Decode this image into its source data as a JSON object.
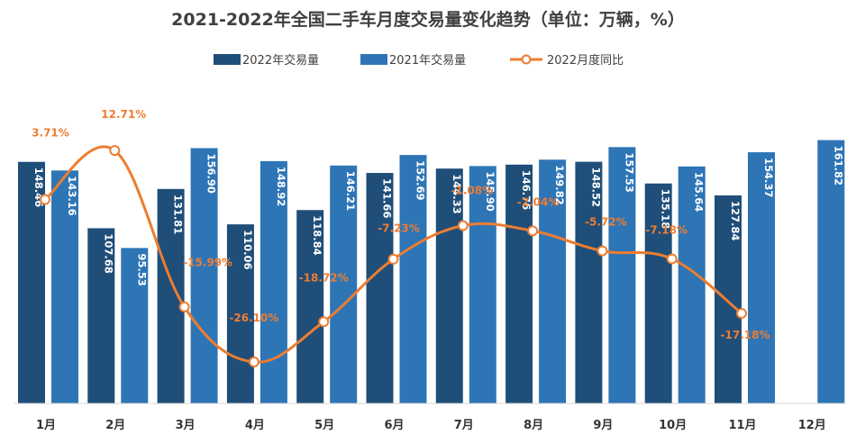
{
  "chart_data": {
    "type": "bar",
    "title": "2021-2022年全国二手车月度交易量变化趋势（单位：万辆，%）",
    "categories": [
      "1月",
      "2月",
      "3月",
      "4月",
      "5月",
      "6月",
      "7月",
      "8月",
      "9月",
      "10月",
      "11月",
      "12月"
    ],
    "series": [
      {
        "name": "2022年交易量",
        "type": "bar",
        "color": "#1F4E79",
        "values": [
          148.46,
          107.68,
          131.81,
          110.06,
          118.84,
          141.66,
          144.33,
          146.76,
          148.52,
          135.18,
          127.84,
          null
        ],
        "labels": [
          "148.46",
          "107.68",
          "131.81",
          "110.06",
          "118.84",
          "141.66",
          "144.33",
          "146.76",
          "148.52",
          "135.18",
          "127.84",
          ""
        ]
      },
      {
        "name": "2021年交易量",
        "type": "bar",
        "color": "#2E75B6",
        "values": [
          143.16,
          95.53,
          156.9,
          148.92,
          146.21,
          152.69,
          145.9,
          149.82,
          157.53,
          145.64,
          154.37,
          161.82
        ],
        "labels": [
          "143.16",
          "95.53",
          "156.90",
          "148.92",
          "146.21",
          "152.69",
          "145.90",
          "149.82",
          "157.53",
          "145.64",
          "154.37",
          "161.82"
        ]
      },
      {
        "name": "2022月度同比",
        "type": "line",
        "color": "#ED7D31",
        "values": [
          3.71,
          12.71,
          -15.99,
          -26.1,
          -18.72,
          -7.23,
          -1.08,
          -2.04,
          -5.72,
          -7.18,
          -17.18,
          null
        ],
        "labels": [
          "3.71%",
          "12.71%",
          "-15.99%",
          "-26.10%",
          "-18.72%",
          "-7.23%",
          "-1.08%",
          "-2.04%",
          "-5.72%",
          "-7.18%",
          "-17.18%",
          ""
        ]
      }
    ],
    "ylim_bars": [
      0,
      175
    ],
    "ylim_line": [
      -30,
      15
    ],
    "grid": false,
    "legend_position": "top-center"
  }
}
